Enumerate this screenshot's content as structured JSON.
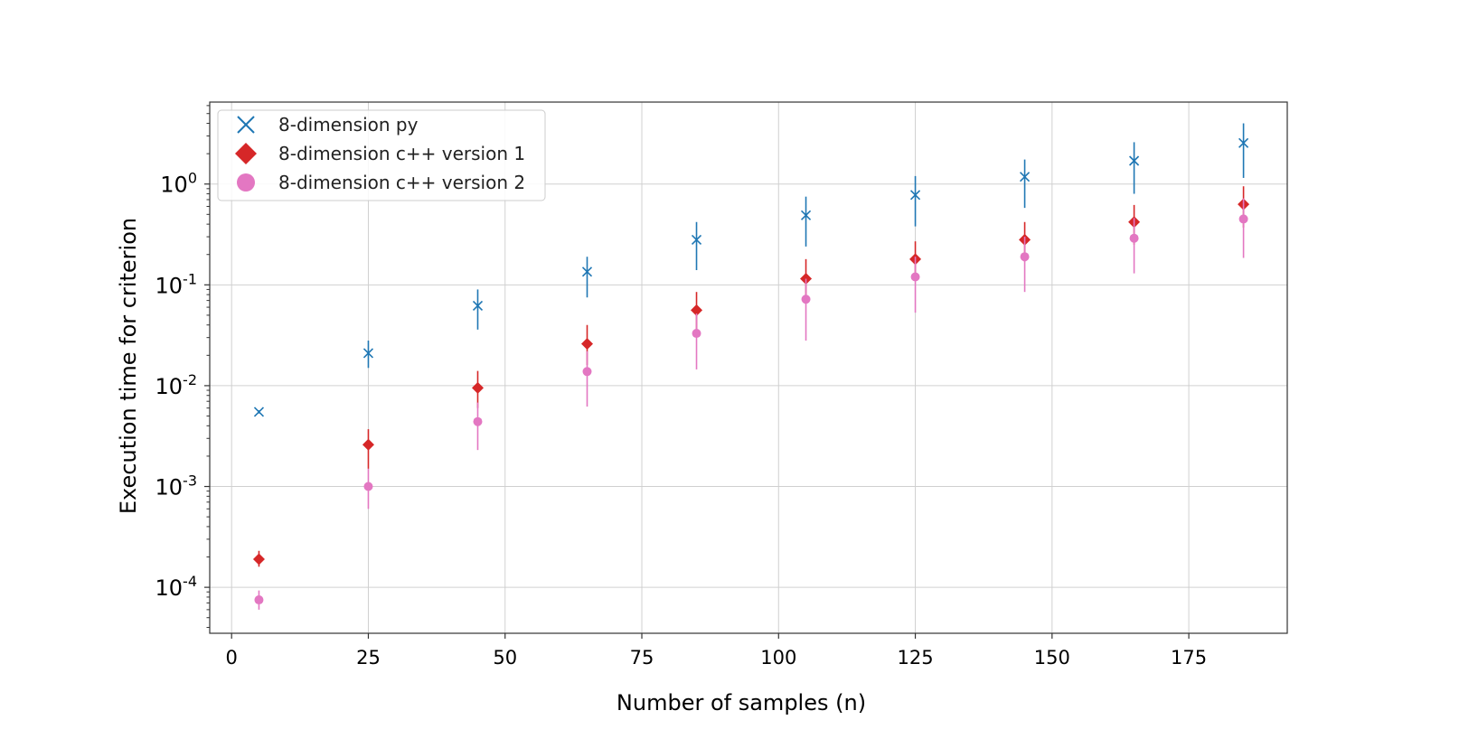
{
  "chart_data": {
    "type": "scatter",
    "title": "",
    "xlabel": "Number of samples (n)",
    "ylabel": "Execution time for criterion",
    "xlim": [
      -4,
      193
    ],
    "ylim": [
      3.5e-05,
      6.5
    ],
    "yscale": "log",
    "grid": true,
    "legend_position": "top-left",
    "x_ticks": [
      0,
      25,
      50,
      75,
      100,
      125,
      150,
      175
    ],
    "y_ticks": [
      {
        "value": 0.0001,
        "base": "10",
        "exp": "-4"
      },
      {
        "value": 0.001,
        "base": "10",
        "exp": "-3"
      },
      {
        "value": 0.01,
        "base": "10",
        "exp": "-2"
      },
      {
        "value": 0.1,
        "base": "10",
        "exp": "-1"
      },
      {
        "value": 1,
        "base": "10",
        "exp": "0"
      }
    ],
    "series": [
      {
        "name": "8-dimension py",
        "marker": "x",
        "color": "#1f77b4",
        "x": [
          5,
          25,
          45,
          65,
          85,
          105,
          125,
          145,
          165,
          185
        ],
        "y": [
          0.0055,
          0.021,
          0.062,
          0.135,
          0.28,
          0.49,
          0.78,
          1.18,
          1.7,
          2.55
        ],
        "err_low": [
          0.0053,
          0.015,
          0.036,
          0.075,
          0.14,
          0.24,
          0.38,
          0.58,
          0.8,
          1.15
        ],
        "err_high": [
          0.0057,
          0.028,
          0.09,
          0.19,
          0.42,
          0.75,
          1.2,
          1.75,
          2.6,
          4.0
        ]
      },
      {
        "name": "8-dimension c++ version 1",
        "marker": "D",
        "color": "#d62728",
        "x": [
          5,
          25,
          45,
          65,
          85,
          105,
          125,
          145,
          165,
          185
        ],
        "y": [
          0.00019,
          0.0026,
          0.0095,
          0.026,
          0.056,
          0.115,
          0.18,
          0.28,
          0.42,
          0.63
        ],
        "err_low": [
          0.00016,
          0.0015,
          0.006,
          0.016,
          0.035,
          0.07,
          0.11,
          0.17,
          0.25,
          0.37
        ],
        "err_high": [
          0.00023,
          0.0037,
          0.014,
          0.04,
          0.085,
          0.18,
          0.27,
          0.42,
          0.62,
          0.95
        ]
      },
      {
        "name": "8-dimension c++ version 2",
        "marker": "o",
        "color": "#e377c2",
        "x": [
          5,
          25,
          45,
          65,
          85,
          105,
          125,
          145,
          165,
          185
        ],
        "y": [
          7.5e-05,
          0.001,
          0.0044,
          0.0138,
          0.033,
          0.072,
          0.12,
          0.19,
          0.29,
          0.45
        ],
        "err_low": [
          6e-05,
          0.0006,
          0.0023,
          0.0062,
          0.0145,
          0.028,
          0.053,
          0.085,
          0.13,
          0.185
        ],
        "err_high": [
          9.3e-05,
          0.0015,
          0.0068,
          0.022,
          0.052,
          0.115,
          0.19,
          0.3,
          0.46,
          0.72
        ]
      }
    ]
  }
}
